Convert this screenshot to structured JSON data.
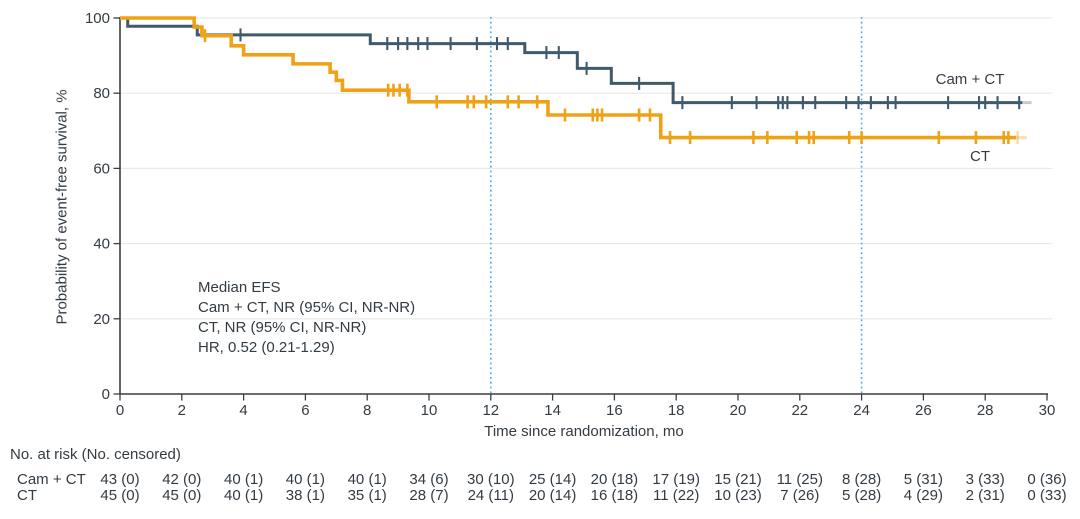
{
  "chart_data": {
    "type": "line",
    "subtype": "kaplan-meier-step",
    "title": "",
    "xlabel": "Time since randomization, mo",
    "ylabel": "Probability of event-free survival, %",
    "xlim": [
      0,
      30
    ],
    "ylim": [
      0,
      100
    ],
    "x_ticks": [
      0,
      2,
      4,
      6,
      8,
      10,
      12,
      14,
      16,
      18,
      20,
      22,
      24,
      26,
      28,
      30
    ],
    "y_ticks": [
      0,
      20,
      40,
      60,
      80,
      100
    ],
    "grid": "horizontal",
    "legend_position": "inline-right",
    "reference_lines_x": [
      12,
      24
    ],
    "colors": {
      "cam_ct": "#3f5a6b",
      "ct": "#f0a216",
      "reference": "#3db3e8",
      "grid": "#e9e9e9",
      "axis": "#3d3d3d",
      "text": "#333b43"
    },
    "annotation": {
      "lines": [
        "Median EFS",
        "Cam + CT, NR (95% CI, NR-NR)",
        "CT, NR (95% CI, NR-NR)",
        "HR, 0.52 (0.21-1.29)"
      ]
    },
    "series": [
      {
        "id": "cam-ct",
        "name": "Cam + CT",
        "color": "#3f5a6b",
        "start_value": 100,
        "steps": [
          [
            0.25,
            97.8
          ],
          [
            2.5,
            95.5
          ],
          [
            8.1,
            93.2
          ],
          [
            13.1,
            90.8
          ],
          [
            14.8,
            86.6
          ],
          [
            15.9,
            82.6
          ],
          [
            17.9,
            77.5
          ]
        ],
        "end_x": 29.2,
        "faint_end_x": 29.5,
        "censor_marks": [
          [
            3.9,
            95.5
          ],
          [
            8.65,
            93.2
          ],
          [
            9.0,
            93.2
          ],
          [
            9.3,
            93.2
          ],
          [
            9.65,
            93.2
          ],
          [
            9.95,
            93.2
          ],
          [
            10.7,
            93.2
          ],
          [
            11.55,
            93.2
          ],
          [
            12.2,
            93.2
          ],
          [
            12.55,
            93.2
          ],
          [
            13.8,
            90.8
          ],
          [
            14.2,
            90.8
          ],
          [
            15.1,
            86.6
          ],
          [
            16.8,
            82.6
          ],
          [
            18.2,
            77.5
          ],
          [
            19.8,
            77.5
          ],
          [
            20.6,
            77.5
          ],
          [
            21.3,
            77.5
          ],
          [
            21.45,
            77.5
          ],
          [
            21.6,
            77.5
          ],
          [
            22.1,
            77.5
          ],
          [
            22.5,
            77.5
          ],
          [
            23.5,
            77.5
          ],
          [
            23.9,
            77.5
          ],
          [
            24.3,
            77.5
          ],
          [
            24.85,
            77.5
          ],
          [
            25.1,
            77.5
          ],
          [
            26.8,
            77.5
          ],
          [
            27.8,
            77.5
          ],
          [
            28.0,
            77.5
          ],
          [
            28.4,
            77.5
          ],
          [
            29.1,
            77.5
          ]
        ]
      },
      {
        "id": "ct",
        "name": "CT",
        "color": "#f0a216",
        "start_value": 100,
        "steps": [
          [
            2.4,
            97.6
          ],
          [
            2.65,
            95.3
          ],
          [
            3.6,
            92.6
          ],
          [
            4.0,
            90.2
          ],
          [
            5.6,
            87.8
          ],
          [
            6.8,
            85.6
          ],
          [
            7.0,
            83.4
          ],
          [
            7.2,
            80.8
          ],
          [
            9.35,
            77.7
          ],
          [
            13.85,
            74.2
          ],
          [
            17.5,
            68.2
          ]
        ],
        "end_x": 29.0,
        "faint_end_x": 29.35,
        "faint_censor_x": 29.05,
        "censor_marks": [
          [
            2.75,
            95.3
          ],
          [
            8.68,
            80.8
          ],
          [
            8.85,
            80.8
          ],
          [
            9.05,
            80.8
          ],
          [
            9.3,
            80.8
          ],
          [
            10.25,
            77.7
          ],
          [
            11.25,
            77.7
          ],
          [
            11.45,
            77.7
          ],
          [
            11.85,
            77.7
          ],
          [
            12.55,
            77.7
          ],
          [
            12.9,
            77.7
          ],
          [
            13.5,
            77.7
          ],
          [
            14.4,
            74.2
          ],
          [
            15.3,
            74.2
          ],
          [
            15.45,
            74.2
          ],
          [
            15.6,
            74.2
          ],
          [
            16.8,
            74.2
          ],
          [
            17.15,
            74.2
          ],
          [
            17.8,
            68.2
          ],
          [
            18.45,
            68.2
          ],
          [
            20.5,
            68.2
          ],
          [
            20.95,
            68.2
          ],
          [
            21.9,
            68.2
          ],
          [
            22.3,
            68.2
          ],
          [
            22.45,
            68.2
          ],
          [
            23.6,
            68.2
          ],
          [
            24.0,
            68.2
          ],
          [
            26.5,
            68.2
          ],
          [
            27.7,
            68.2
          ],
          [
            28.6,
            68.2
          ],
          [
            28.75,
            68.2
          ]
        ]
      }
    ]
  },
  "risk_table": {
    "title": "No. at risk (No. censored)",
    "time_points": [
      0,
      2,
      4,
      6,
      8,
      10,
      12,
      14,
      16,
      18,
      20,
      22,
      24,
      26,
      28,
      30
    ],
    "rows": [
      {
        "label": "Cam + CT",
        "values": [
          "43 (0)",
          "42 (0)",
          "40 (1)",
          "40 (1)",
          "40 (1)",
          "34 (6)",
          "30 (10)",
          "25 (14)",
          "20 (18)",
          "17 (19)",
          "15 (21)",
          "11 (25)",
          "8 (28)",
          "5 (31)",
          "3 (33)",
          "0 (36)"
        ]
      },
      {
        "label": "CT",
        "values": [
          "45 (0)",
          "45 (0)",
          "40 (1)",
          "38 (1)",
          "35 (1)",
          "28 (7)",
          "24 (11)",
          "20 (14)",
          "16 (18)",
          "11 (22)",
          "10 (23)",
          "7 (26)",
          "5 (28)",
          "4 (29)",
          "2 (31)",
          "0 (33)"
        ]
      }
    ]
  }
}
